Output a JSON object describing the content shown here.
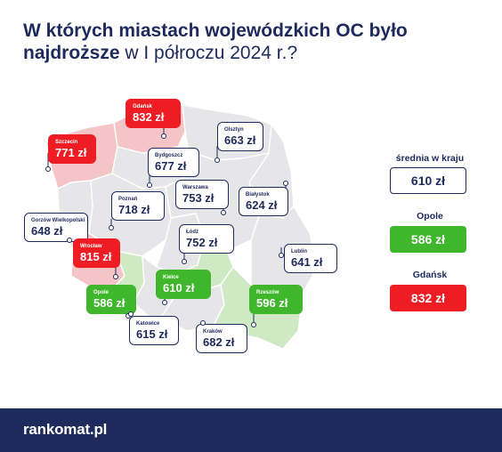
{
  "header": {
    "title_bold": "W których miastach wojewódzkich OC było najdroższe",
    "title_rest": "w I półroczu 2024 r.?"
  },
  "map": {
    "callouts": {
      "gdansk": {
        "city": "Gdańsk",
        "price": "832 zł",
        "status": "highest"
      },
      "olsztyn": {
        "city": "Olsztyn",
        "price": "663 zł"
      },
      "szczecin": {
        "city": "Szczecin",
        "price": "771 zł",
        "status": "high"
      },
      "bydgoszcz": {
        "city": "Bydgoszcz",
        "price": "677 zł"
      },
      "poznan": {
        "city": "Poznań",
        "price": "718 zł"
      },
      "warszawa": {
        "city": "Warszawa",
        "price": "753 zł"
      },
      "bialystok": {
        "city": "Białystok",
        "price": "624 zł"
      },
      "gorzow": {
        "city": "Gorzów Wielkopolski",
        "price": "648 zł"
      },
      "lodz": {
        "city": "Łódź",
        "price": "752 zł"
      },
      "wroclaw": {
        "city": "Wrocław",
        "price": "815 zł",
        "status": "high"
      },
      "lublin": {
        "city": "Lublin",
        "price": "641 zł"
      },
      "kielce": {
        "city": "Kielce",
        "price": "610 zł",
        "status": "low"
      },
      "opole": {
        "city": "Opole",
        "price": "586 zł",
        "status": "lowest"
      },
      "rzeszow": {
        "city": "Rzeszów",
        "price": "596 zł",
        "status": "low"
      },
      "katowice": {
        "city": "Katowice",
        "price": "615 zł"
      },
      "krakow": {
        "city": "Kraków",
        "price": "682 zł"
      }
    },
    "colors": {
      "red_region": "#f5c4c6",
      "green_region": "#cfe9c5",
      "neutral_region": "#e6e6e9",
      "red_badge": "#ee1d23",
      "green_badge": "#3fb62b",
      "navy": "#1d2a5b"
    }
  },
  "sidebar": {
    "national": {
      "label": "średnia w kraju",
      "value": "610 zł"
    },
    "lowest": {
      "label": "Opole",
      "value": "586 zł"
    },
    "highest": {
      "label": "Gdańsk",
      "value": "832 zł"
    }
  },
  "footer": {
    "logo": "rankomat.pl"
  }
}
